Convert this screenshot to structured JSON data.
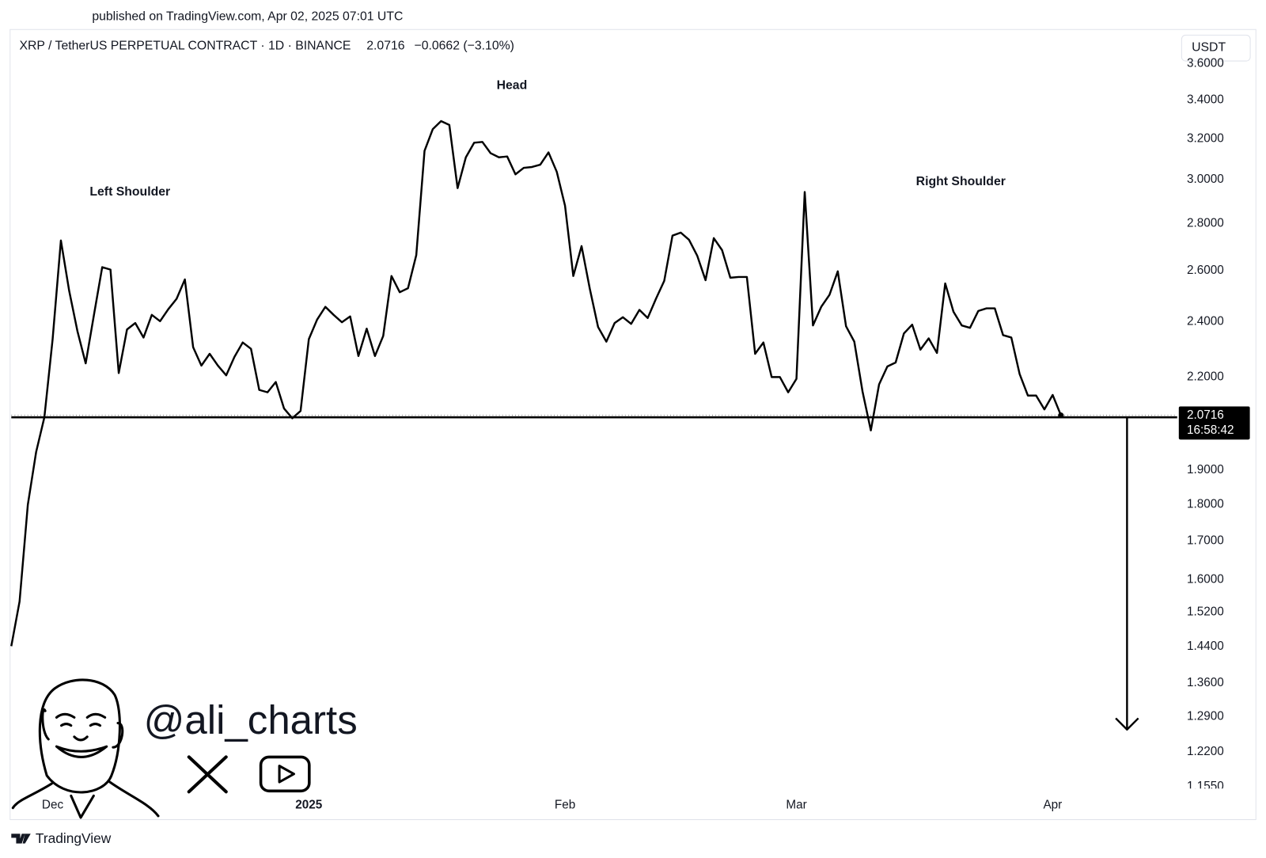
{
  "published": "published on TradingView.com, Apr 02, 2025 07:01 UTC",
  "watermark": "@ali_charts",
  "brand": "TradingView",
  "chart_data": {
    "type": "line",
    "symbol": "XRP / TetherUS PERPETUAL CONTRACT · 1D · BINANCE",
    "change": "−0.0662 (−3.10%)",
    "currency": "USDT",
    "countdown": "16:58:42",
    "annotations": [
      "Left Shoulder",
      "Head",
      "Right Shoulder"
    ],
    "log_scale": true,
    "color": "#000000",
    "categories": [
      null,
      null,
      null,
      null,
      null,
      "Dec",
      null,
      null,
      null,
      null,
      null,
      null,
      null,
      null,
      null,
      null,
      null,
      null,
      null,
      null,
      null,
      null,
      null,
      null,
      null,
      null,
      null,
      null,
      null,
      null,
      null,
      null,
      null,
      null,
      null,
      null,
      "2025",
      null,
      null,
      null,
      null,
      null,
      null,
      null,
      null,
      null,
      null,
      null,
      null,
      null,
      null,
      null,
      null,
      null,
      null,
      null,
      null,
      null,
      null,
      null,
      null,
      null,
      null,
      null,
      null,
      null,
      null,
      "Feb",
      null,
      null,
      null,
      null,
      null,
      null,
      null,
      null,
      null,
      null,
      null,
      null,
      null,
      null,
      null,
      null,
      null,
      null,
      null,
      null,
      null,
      null,
      null,
      null,
      null,
      null,
      null,
      "Mar",
      null,
      null,
      null,
      null,
      null,
      null,
      null,
      null,
      null,
      null,
      null,
      null,
      null,
      null,
      null,
      null,
      null,
      null,
      null,
      null,
      null,
      null,
      null,
      null,
      null,
      null,
      null,
      null,
      null,
      null,
      "Apr",
      null
    ],
    "values": [
      1.441,
      1.546,
      1.8,
      1.955,
      2.065,
      2.335,
      2.727,
      2.52,
      2.365,
      2.248,
      2.426,
      2.615,
      2.605,
      2.214,
      2.371,
      2.395,
      2.341,
      2.426,
      2.402,
      2.448,
      2.488,
      2.565,
      2.306,
      2.24,
      2.282,
      2.24,
      2.206,
      2.271,
      2.323,
      2.3,
      2.156,
      2.148,
      2.183,
      2.094,
      2.062,
      2.086,
      2.335,
      2.408,
      2.457,
      2.426,
      2.398,
      2.42,
      2.274,
      2.374,
      2.274,
      2.347,
      2.579,
      2.514,
      2.53,
      2.665,
      3.14,
      3.249,
      3.29,
      3.27,
      2.961,
      3.108,
      3.18,
      3.184,
      3.128,
      3.108,
      3.112,
      3.026,
      3.057,
      3.061,
      3.072,
      3.132,
      3.038,
      2.88,
      2.579,
      2.703,
      2.527,
      2.38,
      2.326,
      2.395,
      2.417,
      2.392,
      2.445,
      2.414,
      2.488,
      2.559,
      2.748,
      2.761,
      2.73,
      2.662,
      2.562,
      2.737,
      2.686,
      2.572,
      2.575,
      2.575,
      2.282,
      2.323,
      2.2,
      2.2,
      2.148,
      2.194,
      2.943,
      2.386,
      2.457,
      2.504,
      2.598,
      2.383,
      2.326,
      2.15,
      2.023,
      2.175,
      2.237,
      2.251,
      2.356,
      2.389,
      2.297,
      2.338,
      2.285,
      2.549,
      2.438,
      2.386,
      2.377,
      2.441,
      2.451,
      2.451,
      2.35,
      2.341,
      2.211,
      2.137,
      2.137,
      2.091,
      2.139,
      2.0716
    ],
    "neckline": 2.065,
    "arrow": {
      "x": 135,
      "from": 2.065,
      "to": 1.264
    },
    "ylim": [
      1.139,
      3.66
    ],
    "yticks": [
      {
        "value": 3.6,
        "label": "3.6000"
      },
      {
        "value": 3.4,
        "label": "3.4000"
      },
      {
        "value": 3.2,
        "label": "3.2000"
      },
      {
        "value": 3.0,
        "label": "3.0000"
      },
      {
        "value": 2.8,
        "label": "2.8000"
      },
      {
        "value": 2.6,
        "label": "2.6000"
      },
      {
        "value": 2.4,
        "label": "2.4000"
      },
      {
        "value": 2.2,
        "label": "2.2000"
      },
      {
        "value": 1.9,
        "label": "1.9000"
      },
      {
        "value": 1.8,
        "label": "1.8000"
      },
      {
        "value": 1.7,
        "label": "1.7000"
      },
      {
        "value": 1.6,
        "label": "1.6000"
      },
      {
        "value": 1.52,
        "label": "1.5200"
      },
      {
        "value": 1.44,
        "label": "1.4400"
      },
      {
        "value": 1.36,
        "label": "1.3600"
      },
      {
        "value": 1.29,
        "label": "1.2900"
      },
      {
        "value": 1.22,
        "label": "1.2200"
      },
      {
        "value": 1.155,
        "label": "1.1550"
      }
    ]
  }
}
